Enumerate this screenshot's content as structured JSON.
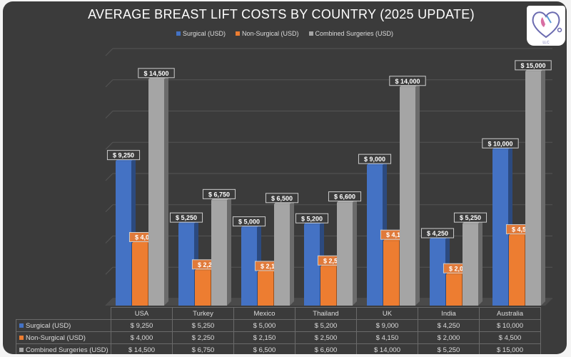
{
  "chart_data": {
    "type": "bar",
    "title": "AVERAGE BREAST LIFT COSTS BY COUNTRY (2025 UPDATE)",
    "categories": [
      "USA",
      "Turkey",
      "Mexico",
      "Thailand",
      "UK",
      "India",
      "Australia"
    ],
    "series": [
      {
        "name": "Surgical (USD)",
        "color": "#4472c4",
        "values": [
          9250,
          5250,
          5000,
          5200,
          9000,
          4250,
          10000
        ],
        "labels": [
          "$ 9,250",
          "$ 5,250",
          "$ 5,000",
          "$ 5,200",
          "$ 9,000",
          "$ 4,250",
          "$ 10,000"
        ]
      },
      {
        "name": "Non-Surgical (USD)",
        "color": "#ed7d31",
        "values": [
          4000,
          2250,
          2150,
          2500,
          4150,
          2000,
          4500
        ],
        "labels": [
          "$ 4,000",
          "$ 2,250",
          "$ 2,150",
          "$ 2,500",
          "$ 4,150",
          "$ 2,000",
          "$ 4,500"
        ]
      },
      {
        "name": "Combined Surgeries (USD)",
        "color": "#a5a5a5",
        "values": [
          14500,
          6750,
          6500,
          6600,
          14000,
          5250,
          15000
        ],
        "labels": [
          "$ 14,500",
          "$ 6,750",
          "$ 6,500",
          "$ 6,600",
          "$ 14,000",
          "$ 5,250",
          "$ 15,000"
        ]
      }
    ],
    "ylim": [
      0,
      16000
    ],
    "grid": true,
    "legend_position": "top",
    "data_table": true
  },
  "logo": {
    "text": "LLC"
  }
}
